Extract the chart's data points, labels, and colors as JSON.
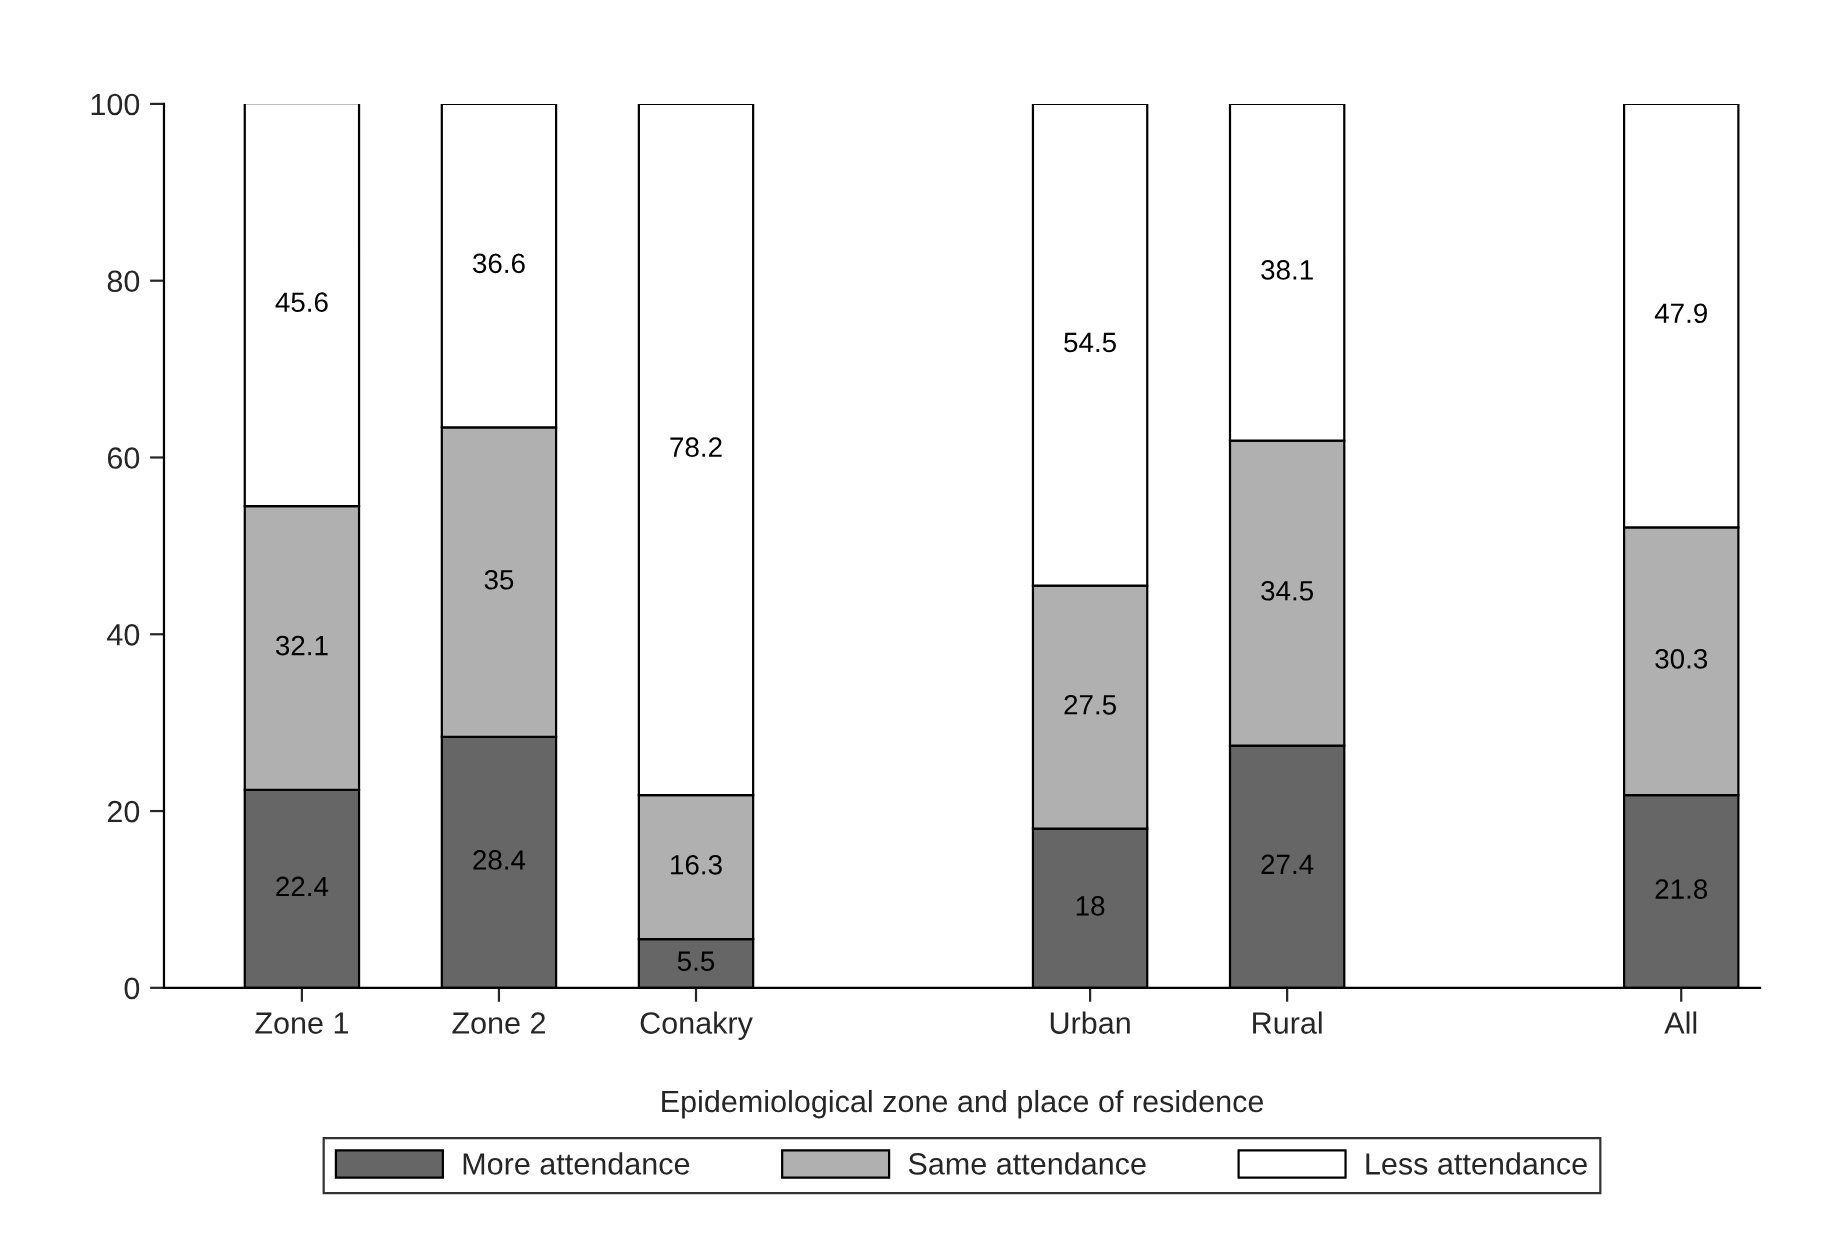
{
  "chart_data": {
    "type": "bar",
    "stacked": true,
    "xlabel": "Epidemiological zone and place of residence",
    "categories": [
      "Zone 1",
      "Zone 2",
      "Conakry",
      null,
      "Urban",
      "Rural",
      null,
      "All"
    ],
    "series": [
      {
        "name": "More attendance",
        "color": "#666666",
        "values": [
          22.4,
          28.4,
          5.5,
          null,
          18,
          27.4,
          null,
          21.8
        ]
      },
      {
        "name": "Same attendance",
        "color": "#b0b0b0",
        "values": [
          32.1,
          35,
          16.3,
          null,
          27.5,
          34.5,
          null,
          30.3
        ]
      },
      {
        "name": "Less attendance",
        "color": "#ffffff",
        "values": [
          45.6,
          36.6,
          78.2,
          null,
          54.5,
          38.1,
          null,
          47.9
        ]
      }
    ],
    "ylim": [
      0,
      100
    ],
    "yticks": [
      0,
      20,
      40,
      60,
      80,
      100
    ],
    "grid": false,
    "legend": "bottom",
    "data_labels": true
  }
}
